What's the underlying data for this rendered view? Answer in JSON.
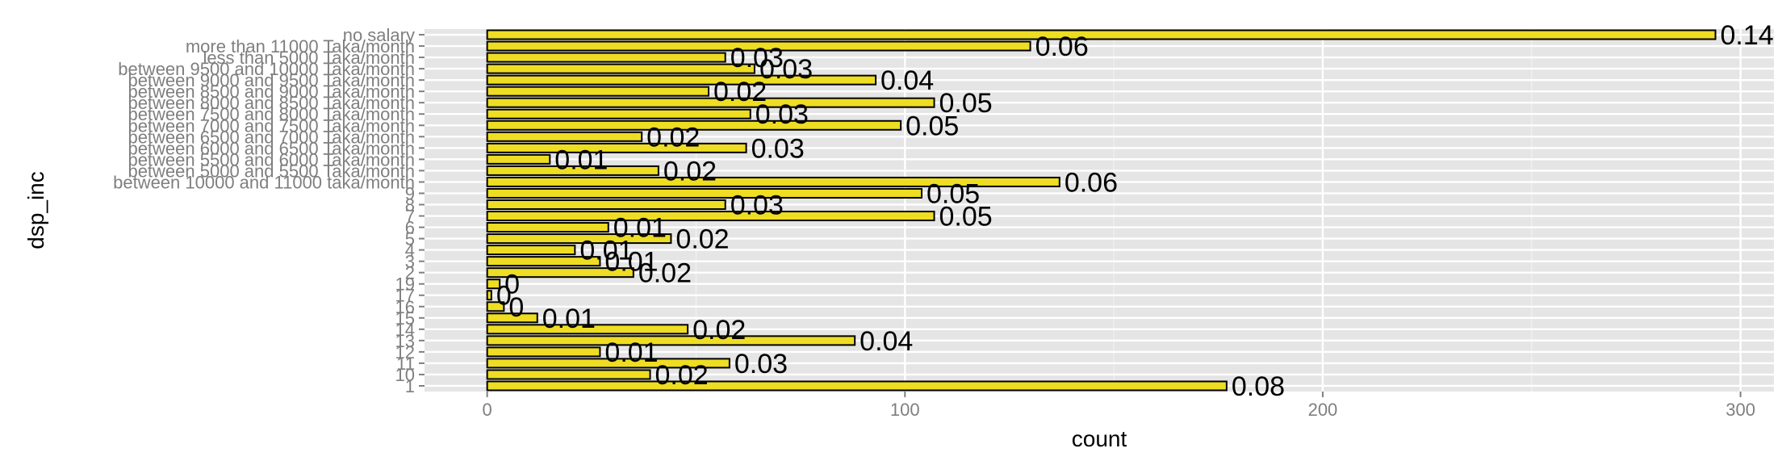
{
  "chart_data": {
    "type": "bar",
    "orientation": "horizontal",
    "xlabel": "count",
    "ylabel": "dsp_inc",
    "xlim": [
      -15,
      308
    ],
    "xticks": [
      0,
      100,
      200,
      300
    ],
    "grid": true,
    "legend": "none",
    "colors": {
      "panel": "#e5e5e5",
      "grid_major": "#ffffff",
      "grid_minor": "#f2f2f2",
      "bar_fill": "#eedd22",
      "bar_stroke": "#000000",
      "tick_text": "#7f7f7f"
    },
    "categories": [
      "1",
      "10",
      "11",
      "12",
      "13",
      "14",
      "15",
      "16",
      "17",
      "19",
      "2",
      "3",
      "4",
      "5",
      "6",
      "7",
      "8",
      "9",
      "between 10000 and 11000 taka/month",
      "between 5000 and 5500 Taka/month",
      "between 5500 and 6000 Taka/month",
      "between 6000 and 6500 Taka/month",
      "between 6500 and 7000 Taka/month",
      "between 7000 and 7500 Taka/month",
      "between 7500 and 8000 Taka/month",
      "between 8000 and 8500 Taka/month",
      "between 8500 and 9000 Taka/month",
      "between 9000 and 9500 Taka/month",
      "between 9500 and 10000 Taka/month",
      "less than 5000 Taka/month",
      "more than 11000 Taka/month",
      "no salary"
    ],
    "values": [
      177,
      39,
      58,
      27,
      88,
      48,
      12,
      4,
      1,
      3,
      35,
      27,
      21,
      44,
      29,
      107,
      57,
      104,
      137,
      41,
      15,
      62,
      37,
      99,
      63,
      107,
      53,
      93,
      64,
      57,
      130,
      294
    ],
    "labels": [
      "0.08",
      "0.02",
      "0.03",
      "0.01",
      "0.04",
      "0.02",
      "0.01",
      "0",
      "0",
      "0",
      "0.02",
      "0.01",
      "0.01",
      "0.02",
      "0.01",
      "0.05",
      "0.03",
      "0.05",
      "0.06",
      "0.02",
      "0.01",
      "0.03",
      "0.02",
      "0.05",
      "0.03",
      "0.05",
      "0.02",
      "0.04",
      "0.03",
      "0.03",
      "0.06",
      "0.14"
    ]
  }
}
